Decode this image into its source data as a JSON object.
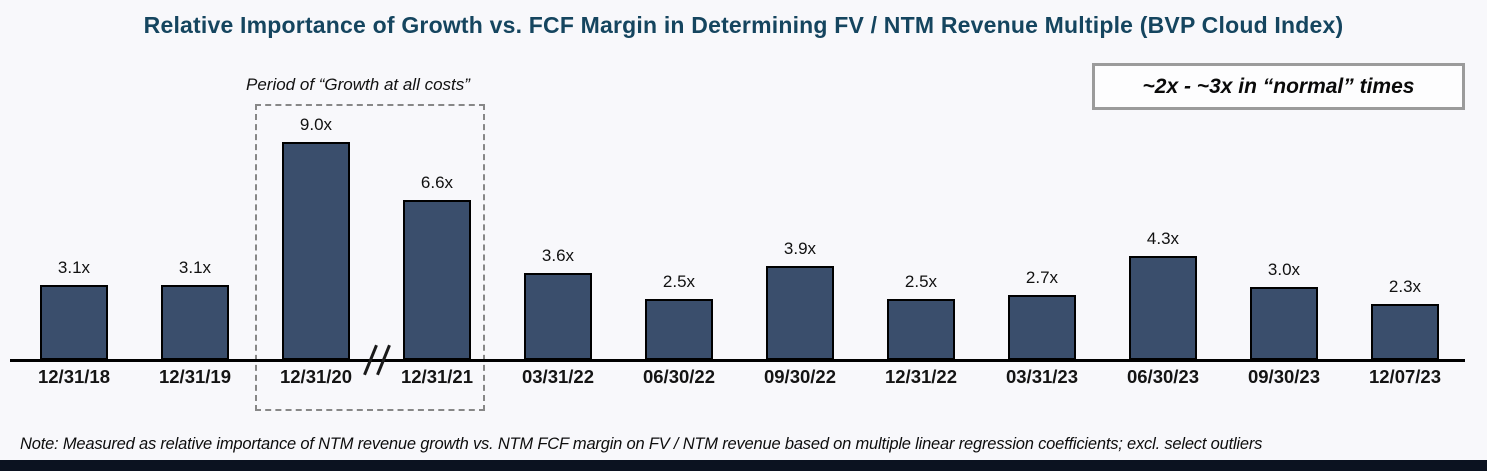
{
  "title": "Relative Importance of Growth vs. FCF Margin in Determining FV / NTM Revenue Multiple (BVP Cloud Index)",
  "annotations": {
    "growth_period": "Period of “Growth at all costs”",
    "normal_times": "~2x - ~3x in “normal” times"
  },
  "footnote": "Note: Measured as relative importance of NTM revenue growth vs. NTM FCF margin on FV / NTM revenue based on multiple linear regression coefficients; excl. select outliers",
  "colors": {
    "bar_fill": "#3a4e6c",
    "bar_border": "#000000",
    "title_text": "#15455f",
    "background": "#f8f8fb",
    "bottom_accent": "#0b1220",
    "dashed_box_border": "#878787",
    "callout_border": "#9b9b9b"
  },
  "chart_data": {
    "type": "bar",
    "title": "Relative Importance of Growth vs. FCF Margin in Determining FV / NTM Revenue Multiple (BVP Cloud Index)",
    "categories": [
      "12/31/18",
      "12/31/19",
      "12/31/20",
      "12/31/21",
      "03/31/22",
      "06/30/22",
      "09/30/22",
      "12/31/22",
      "03/31/23",
      "06/30/23",
      "09/30/23",
      "12/07/23"
    ],
    "values": [
      3.1,
      3.1,
      9.0,
      6.6,
      3.6,
      2.5,
      3.9,
      2.5,
      2.7,
      4.3,
      3.0,
      2.3
    ],
    "data_labels": [
      "3.1x",
      "3.1x",
      "9.0x",
      "6.6x",
      "3.6x",
      "2.5x",
      "3.9x",
      "2.5x",
      "2.7x",
      "4.3x",
      "3.0x",
      "2.3x"
    ],
    "xlabel": "",
    "ylabel": "",
    "ylim": [
      0,
      10
    ],
    "grid": false,
    "legend": false,
    "y_axis_shown": false,
    "axis_break_between": [
      "12/31/20",
      "12/31/21"
    ],
    "highlighted_categories": [
      "12/31/20",
      "12/31/21"
    ],
    "highlight_label": "Period of “Growth at all costs”"
  }
}
